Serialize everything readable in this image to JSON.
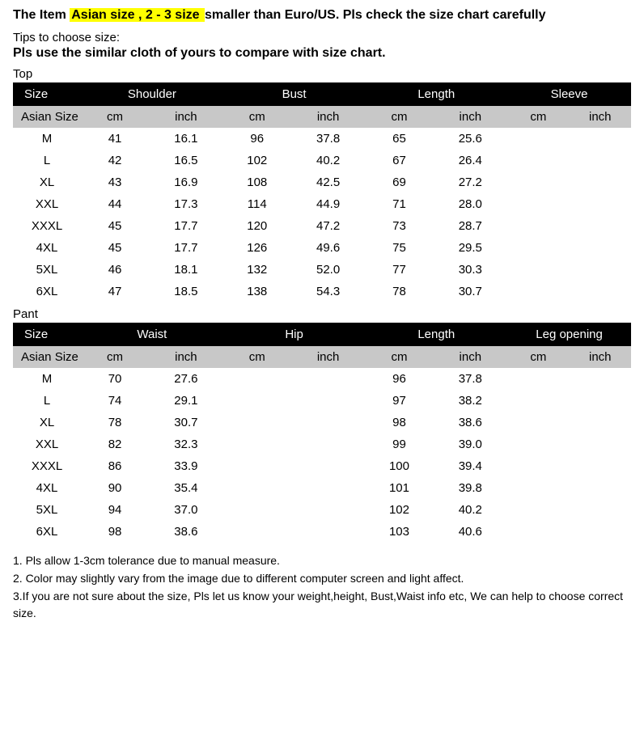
{
  "header": {
    "prefix": "The Item",
    "highlight": " Asian size , 2 - 3 size ",
    "suffix": "smaller than Euro/US. Pls check the size chart carefully"
  },
  "tips_line": "Tips to choose size:",
  "tips_bold": "Pls use the similar cloth of yours to compare with size chart.",
  "top_label": "Top",
  "pant_label": "Pant",
  "top_table": {
    "hdr1": [
      "Size",
      "Shoulder",
      "Bust",
      "Length",
      "Sleeve"
    ],
    "hdr2": [
      "Asian Size",
      "cm",
      "inch",
      "cm",
      "inch",
      "cm",
      "inch",
      "cm",
      "inch"
    ],
    "rows": [
      [
        "M",
        "41",
        "16.1",
        "96",
        "37.8",
        "65",
        "25.6",
        "",
        ""
      ],
      [
        "L",
        "42",
        "16.5",
        "102",
        "40.2",
        "67",
        "26.4",
        "",
        ""
      ],
      [
        "XL",
        "43",
        "16.9",
        "108",
        "42.5",
        "69",
        "27.2",
        "",
        ""
      ],
      [
        "XXL",
        "44",
        "17.3",
        "114",
        "44.9",
        "71",
        "28.0",
        "",
        ""
      ],
      [
        "XXXL",
        "45",
        "17.7",
        "120",
        "47.2",
        "73",
        "28.7",
        "",
        ""
      ],
      [
        "4XL",
        "45",
        "17.7",
        "126",
        "49.6",
        "75",
        "29.5",
        "",
        ""
      ],
      [
        "5XL",
        "46",
        "18.1",
        "132",
        "52.0",
        "77",
        "30.3",
        "",
        ""
      ],
      [
        "6XL",
        "47",
        "18.5",
        "138",
        "54.3",
        "78",
        "30.7",
        "",
        ""
      ]
    ]
  },
  "pant_table": {
    "hdr1": [
      "Size",
      "Waist",
      "Hip",
      "Length",
      "Leg opening"
    ],
    "hdr2": [
      "Asian Size",
      "cm",
      "inch",
      "cm",
      "inch",
      "cm",
      "inch",
      "cm",
      "inch"
    ],
    "rows": [
      [
        "M",
        "70",
        "27.6",
        "",
        "",
        "96",
        "37.8",
        "",
        ""
      ],
      [
        "L",
        "74",
        "29.1",
        "",
        "",
        "97",
        "38.2",
        "",
        ""
      ],
      [
        "XL",
        "78",
        "30.7",
        "",
        "",
        "98",
        "38.6",
        "",
        ""
      ],
      [
        "XXL",
        "82",
        "32.3",
        "",
        "",
        "99",
        "39.0",
        "",
        ""
      ],
      [
        "XXXL",
        "86",
        "33.9",
        "",
        "",
        "100",
        "39.4",
        "",
        ""
      ],
      [
        "4XL",
        "90",
        "35.4",
        "",
        "",
        "101",
        "39.8",
        "",
        ""
      ],
      [
        "5XL",
        "94",
        "37.0",
        "",
        "",
        "102",
        "40.2",
        "",
        ""
      ],
      [
        "6XL",
        "98",
        "38.6",
        "",
        "",
        "103",
        "40.6",
        "",
        ""
      ]
    ]
  },
  "notes": [
    "1. Pls allow 1-3cm tolerance due to manual measure.",
    "2. Color may slightly vary from the image due to different computer screen and light affect.",
    "3.If you are not sure about the size, Pls let us know your weight,height, Bust,Waist info etc, We can help to choose correct size."
  ]
}
